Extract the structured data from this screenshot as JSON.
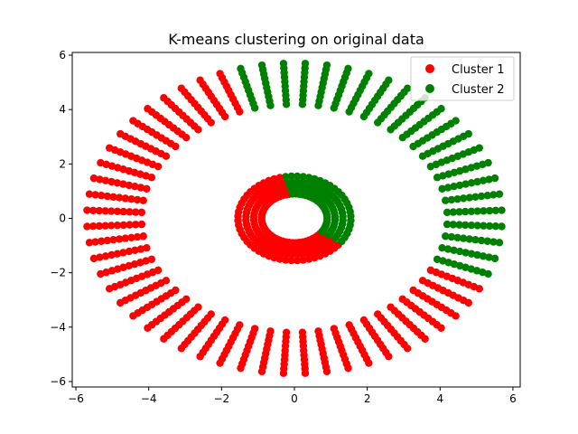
{
  "chart_data": {
    "type": "scatter",
    "title": "K-means clustering on original data",
    "xlabel": "",
    "ylabel": "",
    "xlim": [
      -6.1,
      6.2
    ],
    "ylim": [
      -6.2,
      6.1
    ],
    "xticks": [
      -6,
      -4,
      -2,
      0,
      2,
      4,
      6
    ],
    "yticks": [
      -6,
      -4,
      -2,
      0,
      2,
      4,
      6
    ],
    "xtick_labels": [
      "−6",
      "−4",
      "−2",
      "0",
      "2",
      "4",
      "6"
    ],
    "ytick_labels": [
      "−6",
      "−4",
      "−2",
      "0",
      "2",
      "4",
      "6"
    ],
    "grid": false,
    "legend_position": "top-right",
    "series": [
      {
        "name": "Cluster 1",
        "color": "#ff0000"
      },
      {
        "name": "Cluster 2",
        "color": "#008000"
      }
    ],
    "data_description": {
      "outer_ring": {
        "radius_min": 4.2,
        "radius_max": 5.7,
        "rays": 60,
        "points_per_ray": 10
      },
      "inner_ring": {
        "radius_min": 0.9,
        "radius_max": 1.55,
        "rays": 60,
        "points_per_ray": 4
      },
      "cluster_split": "Cluster 2 (green) covers angles from about 105° down to about -22° on the outer ring and from about 100° down to about -38° on the inner ring; the rest is Cluster 1 (red)"
    }
  }
}
